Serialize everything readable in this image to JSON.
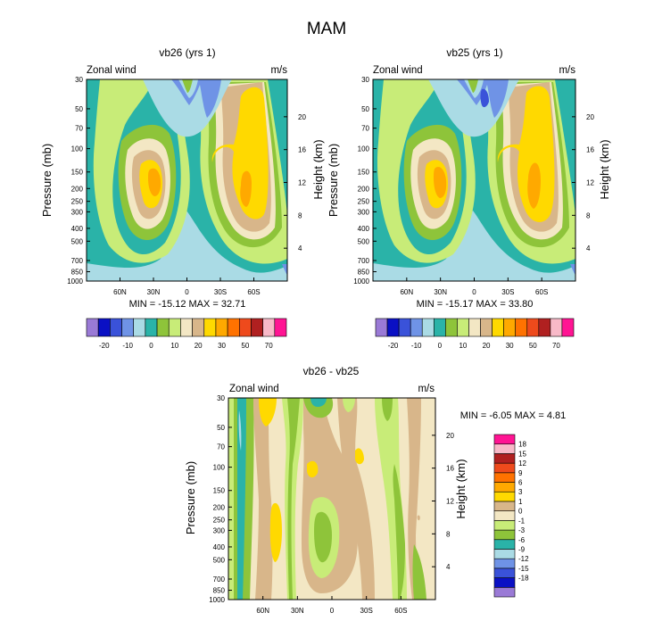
{
  "chart_data": {
    "type": "heatmap",
    "title": "MAM",
    "panels": [
      {
        "id": "vb26",
        "title": "vb26 (yrs 1)",
        "left_label": "Zonal wind",
        "right_label": "m/s",
        "ylabel": "Pressure (mb)",
        "y2label": "Height (km)",
        "yticks": [
          "30",
          "50",
          "70",
          "100",
          "150",
          "200",
          "250",
          "300",
          "400",
          "500",
          "700",
          "850",
          "1000"
        ],
        "yticks_right": [
          "20",
          "16",
          "12",
          "8",
          "4"
        ],
        "xticks": [
          "60N",
          "30N",
          "0",
          "30S",
          "60S"
        ],
        "stats": "MIN = -15.12  MAX = 32.71",
        "min": -15.12,
        "max": 32.71
      },
      {
        "id": "vb25",
        "title": "vb25 (yrs 1)",
        "left_label": "Zonal wind",
        "right_label": "m/s",
        "ylabel": "Pressure (mb)",
        "y2label": "Height (km)",
        "yticks": [
          "30",
          "50",
          "70",
          "100",
          "150",
          "200",
          "250",
          "300",
          "400",
          "500",
          "700",
          "850",
          "1000"
        ],
        "yticks_right": [
          "20",
          "16",
          "12",
          "8",
          "4"
        ],
        "xticks": [
          "60N",
          "30N",
          "0",
          "30S",
          "60S"
        ],
        "stats": "MIN = -15.17  MAX =  33.80",
        "min": -15.17,
        "max": 33.8
      },
      {
        "id": "diff",
        "title": "vb26 - vb25",
        "left_label": "Zonal wind",
        "right_label": "m/s",
        "ylabel": "Pressure (mb)",
        "y2label": "Height (km)",
        "yticks": [
          "30",
          "50",
          "70",
          "100",
          "150",
          "200",
          "250",
          "300",
          "400",
          "500",
          "700",
          "850",
          "1000"
        ],
        "yticks_right": [
          "20",
          "16",
          "12",
          "8",
          "4"
        ],
        "xticks": [
          "60N",
          "30N",
          "0",
          "30S",
          "60S"
        ],
        "stats": "MIN =  -6.05  MAX =   4.81",
        "min": -6.05,
        "max": 4.81
      }
    ],
    "colorbar_main": {
      "colors": [
        "#9a7ad6",
        "#0a10c4",
        "#3a52d9",
        "#6f93e6",
        "#aadbe5",
        "#2ab3a8",
        "#8ec43a",
        "#c8ec78",
        "#f3e7c4",
        "#d8b68a",
        "#ffd900",
        "#ffa900",
        "#ff7200",
        "#ee4a1c",
        "#b02020",
        "#f8b9c8",
        "#ff1493"
      ],
      "labels": [
        "-20",
        "-10",
        "0",
        "10",
        "20",
        "30",
        "50",
        "70"
      ]
    },
    "colorbar_diff": {
      "colors": [
        "#9a7ad6",
        "#0a10c4",
        "#3a52d9",
        "#6f93e6",
        "#aadbe5",
        "#2ab3a8",
        "#8ec43a",
        "#c8ec78",
        "#f3e7c4",
        "#d8b68a",
        "#ffd900",
        "#ffa900",
        "#ff7200",
        "#ee4a1c",
        "#b02020",
        "#f8b9c8",
        "#ff1493"
      ],
      "labels": [
        "18",
        "15",
        "12",
        "9",
        "6",
        "3",
        "1",
        "0",
        "-1",
        "-3",
        "-6",
        "-9",
        "-12",
        "-15",
        "-18"
      ]
    }
  }
}
